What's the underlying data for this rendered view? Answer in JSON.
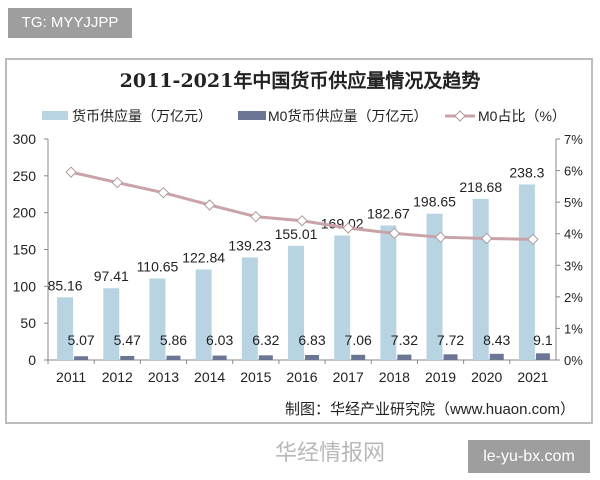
{
  "tag": "TG: MYYJJPP",
  "watermark": "le-yu-bx.com",
  "site_watermark": "华经情报网",
  "chart_data": {
    "type": "bar",
    "title": "2011-2021年中国货币供应量情况及趋势",
    "categories": [
      "2011",
      "2012",
      "2013",
      "2014",
      "2015",
      "2016",
      "2017",
      "2018",
      "2019",
      "2020",
      "2021"
    ],
    "series": [
      {
        "name": "货币供应量（万亿元）",
        "type": "bar",
        "axis": "left",
        "color": "#b8d4e3",
        "values": [
          85.16,
          97.41,
          110.65,
          122.84,
          139.23,
          155.01,
          169.02,
          182.67,
          198.65,
          218.68,
          238.3
        ],
        "labels": [
          "85.16",
          "97.41",
          "110.65",
          "122.84",
          "139.23",
          "155.01",
          "169.02",
          "182.67",
          "198.65",
          "218.68",
          "238.3"
        ]
      },
      {
        "name": "M0货币供应量（万亿元）",
        "type": "bar",
        "axis": "left",
        "color": "#6c7593",
        "values": [
          5.07,
          5.47,
          5.86,
          6.03,
          6.32,
          6.83,
          7.06,
          7.32,
          7.72,
          8.43,
          9.1
        ],
        "labels": [
          "5.07",
          "5.47",
          "5.86",
          "6.03",
          "6.32",
          "6.83",
          "7.06",
          "7.32",
          "7.72",
          "8.43",
          "9.1"
        ]
      },
      {
        "name": "M0占比（%）",
        "type": "line",
        "axis": "right",
        "color": "#c9a3a8",
        "values": [
          5.95,
          5.62,
          5.3,
          4.91,
          4.54,
          4.41,
          4.18,
          4.01,
          3.89,
          3.85,
          3.82
        ]
      }
    ],
    "y_left": {
      "ylim": [
        0,
        300
      ],
      "ticks": [
        "0",
        "50",
        "100",
        "150",
        "200",
        "250",
        "300"
      ]
    },
    "y_right": {
      "ylim": [
        0,
        7
      ],
      "ticks": [
        "0%",
        "1%",
        "2%",
        "3%",
        "4%",
        "5%",
        "6%",
        "7%"
      ]
    },
    "legend": "top",
    "grid": false,
    "source": "制图：华经产业研究院（www.huaon.com）"
  }
}
